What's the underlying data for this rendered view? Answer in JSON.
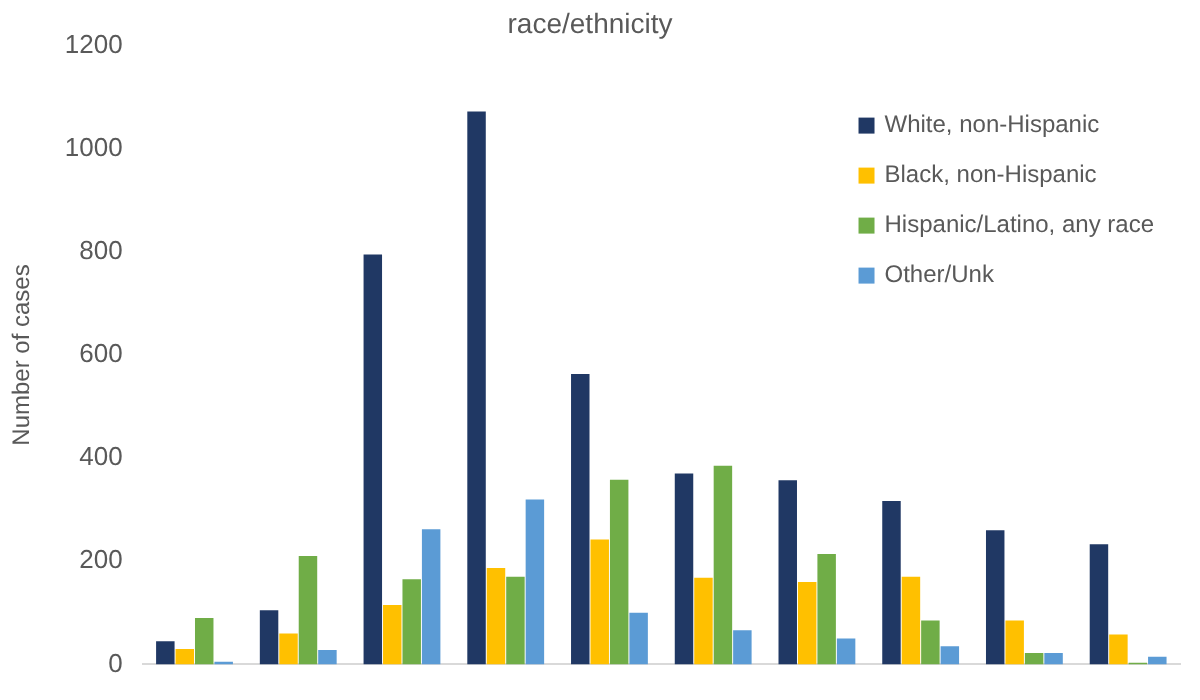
{
  "chart_data": {
    "type": "bar",
    "title": "race/ethnicity",
    "ylabel": "Number of cases",
    "categories": [
      null,
      null,
      null,
      null,
      null,
      null,
      null,
      null,
      null,
      null
    ],
    "series": [
      {
        "name": "White, non-Hispanic",
        "color": "#203864",
        "values": [
          45,
          105,
          795,
          1072,
          563,
          370,
          357,
          317,
          260,
          233
        ]
      },
      {
        "name": "Black, non-Hispanic",
        "color": "#ffc000",
        "values": [
          30,
          60,
          115,
          187,
          242,
          168,
          160,
          170,
          85,
          58
        ]
      },
      {
        "name": "Hispanic/Latino, any race",
        "color": "#70ad47",
        "values": [
          90,
          210,
          165,
          170,
          358,
          385,
          214,
          85,
          22,
          3
        ]
      },
      {
        "name": "Other/Unk",
        "color": "#5b9bd5",
        "values": [
          5,
          28,
          262,
          320,
          100,
          66,
          50,
          35,
          22,
          15
        ]
      }
    ],
    "ylim": [
      0,
      1200
    ],
    "yticks": [
      0,
      200,
      400,
      600,
      800,
      1000,
      1200
    ],
    "grid": false,
    "legend": "top right",
    "tick_labels": "y"
  }
}
